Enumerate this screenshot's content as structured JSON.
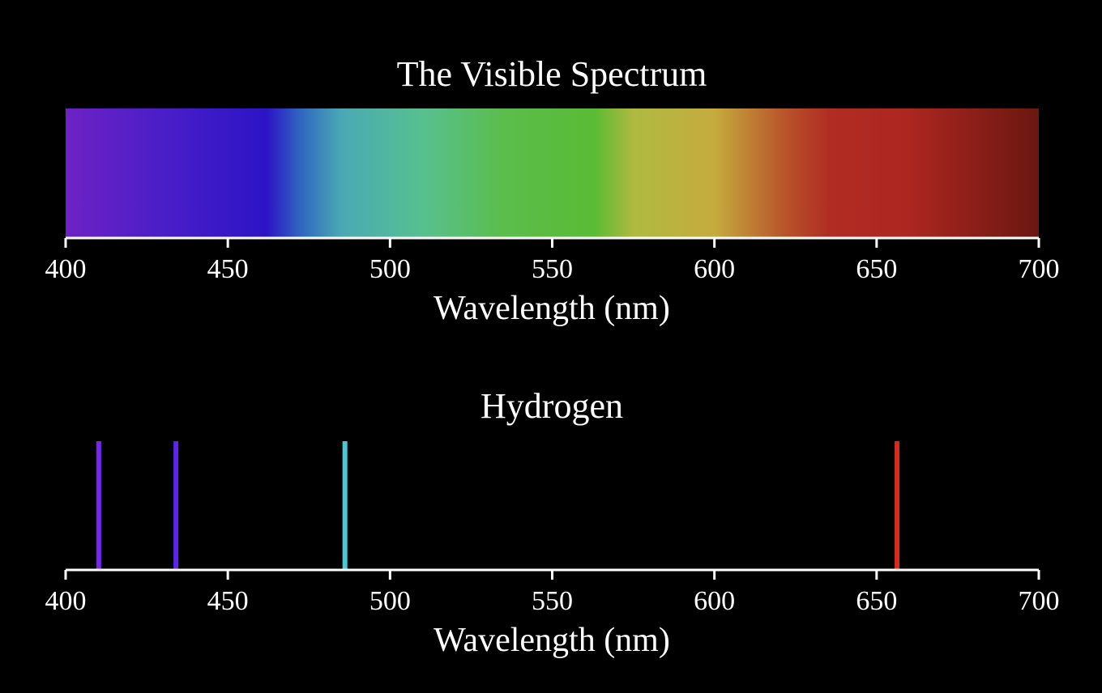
{
  "chart_data": [
    {
      "type": "heatmap",
      "title": "The Visible Spectrum",
      "xlabel": "Wavelength (nm)",
      "xlim": [
        400,
        700
      ],
      "xticks": [
        400,
        450,
        500,
        550,
        600,
        650,
        700
      ],
      "color_stops": [
        {
          "wavelength": 400,
          "color": "#6d22c4"
        },
        {
          "wavelength": 430,
          "color": "#4a1ec8"
        },
        {
          "wavelength": 462,
          "color": "#2c14c6"
        },
        {
          "wavelength": 472,
          "color": "#2e64c0"
        },
        {
          "wavelength": 485,
          "color": "#4aa9b4"
        },
        {
          "wavelength": 510,
          "color": "#57c090"
        },
        {
          "wavelength": 535,
          "color": "#5bbd4c"
        },
        {
          "wavelength": 563,
          "color": "#5abb34"
        },
        {
          "wavelength": 575,
          "color": "#afba40"
        },
        {
          "wavelength": 600,
          "color": "#c6ab3e"
        },
        {
          "wavelength": 622,
          "color": "#b8532a"
        },
        {
          "wavelength": 635,
          "color": "#b12d23"
        },
        {
          "wavelength": 660,
          "color": "#ad2620"
        },
        {
          "wavelength": 700,
          "color": "#6a1710"
        }
      ]
    },
    {
      "type": "bar",
      "title": "Hydrogen",
      "xlabel": "Wavelength (nm)",
      "xlim": [
        400,
        700
      ],
      "xticks": [
        400,
        450,
        500,
        550,
        600,
        650,
        700
      ],
      "lines": [
        {
          "wavelength": 410.2,
          "color": "#7426f5"
        },
        {
          "wavelength": 434.0,
          "color": "#5d23ef"
        },
        {
          "wavelength": 486.1,
          "color": "#47cad8"
        },
        {
          "wavelength": 656.3,
          "color": "#d92b1c"
        }
      ]
    }
  ]
}
